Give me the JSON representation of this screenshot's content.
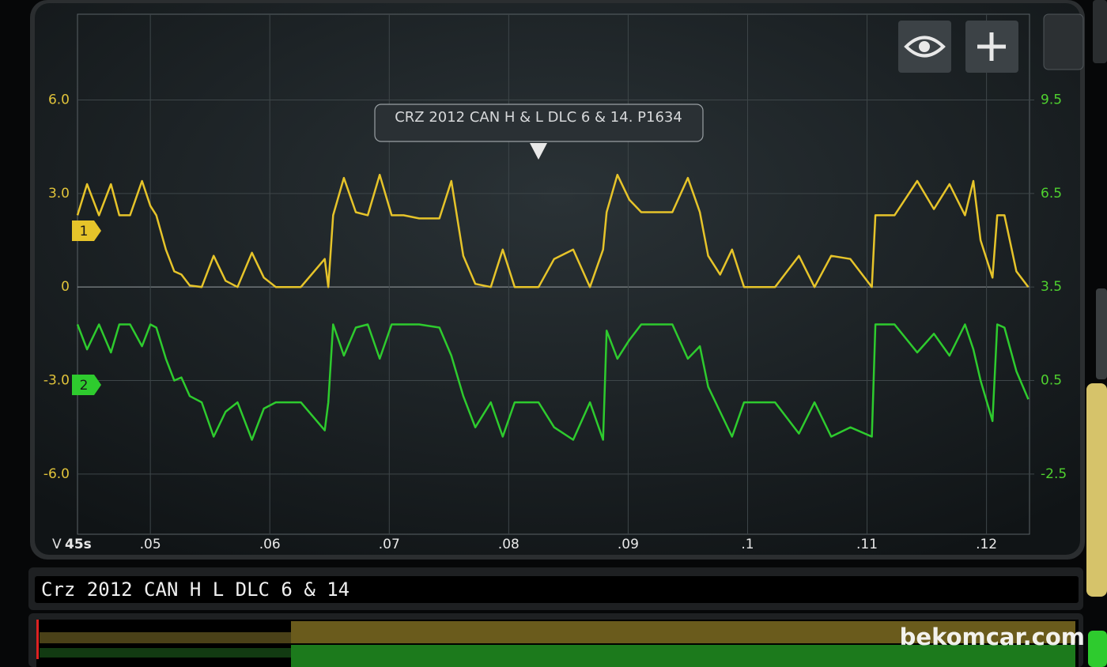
{
  "chart_data": {
    "type": "line",
    "title": "CRZ 2012 CAN H & L DLC 6 & 14. P1634",
    "trace_name": "Crz 2012 CAN H L DLC 6 & 14",
    "y_unit_label": "V",
    "x_origin_label": "45s",
    "watermark": "bekomcar.com",
    "x": [
      0.0439,
      0.0447,
      0.0457,
      0.0467,
      0.0474,
      0.0483,
      0.0493,
      0.05,
      0.0505,
      0.0513,
      0.052,
      0.0526,
      0.0533,
      0.0543,
      0.0553,
      0.0563,
      0.0573,
      0.0585,
      0.0595,
      0.0605,
      0.0626,
      0.0646,
      0.0649,
      0.0653,
      0.0662,
      0.0672,
      0.0682,
      0.0692,
      0.0702,
      0.0712,
      0.0725,
      0.0742,
      0.0752,
      0.0762,
      0.0772,
      0.0785,
      0.0795,
      0.0805,
      0.0825,
      0.0838,
      0.0854,
      0.0868,
      0.0879,
      0.0882,
      0.0891,
      0.0901,
      0.0911,
      0.0924,
      0.0937,
      0.095,
      0.096,
      0.0967,
      0.0977,
      0.0987,
      0.0997,
      0.1007,
      0.1023,
      0.1043,
      0.1056,
      0.107,
      0.1086,
      0.1104,
      0.1107,
      0.1123,
      0.1142,
      0.1156,
      0.1169,
      0.1182,
      0.1189,
      0.1195,
      0.1205,
      0.1209,
      0.1215,
      0.1225,
      0.1235
    ],
    "series": [
      {
        "name": "1",
        "color": "#e6c42a",
        "values": [
          2.3,
          3.3,
          2.3,
          3.3,
          2.3,
          2.3,
          3.4,
          2.6,
          2.3,
          1.2,
          0.5,
          0.4,
          0.05,
          0,
          1.0,
          0.2,
          0,
          1.1,
          0.3,
          0,
          0,
          0.9,
          0,
          2.3,
          3.5,
          2.4,
          2.3,
          3.6,
          2.3,
          2.3,
          2.2,
          2.2,
          3.4,
          1.0,
          0.1,
          0,
          1.2,
          0,
          0,
          0.9,
          1.2,
          0,
          1.2,
          2.4,
          3.6,
          2.8,
          2.4,
          2.4,
          2.4,
          3.5,
          2.4,
          1.0,
          0.4,
          1.2,
          0,
          0,
          0,
          1.0,
          0,
          1.0,
          0.9,
          0,
          2.3,
          2.3,
          3.4,
          2.5,
          3.3,
          2.3,
          3.4,
          1.5,
          0.3,
          2.3,
          2.3,
          0.5,
          0
        ]
      },
      {
        "name": "2",
        "color": "#2ecb2e",
        "axis": "y2",
        "values": [
          2.3,
          1.5,
          2.3,
          1.4,
          2.3,
          2.3,
          1.6,
          2.3,
          2.2,
          1.2,
          0.5,
          0.6,
          0.0,
          -0.2,
          -1.3,
          -0.5,
          -0.2,
          -1.4,
          -0.4,
          -0.2,
          -0.2,
          -1.1,
          -0.2,
          2.3,
          1.3,
          2.2,
          2.3,
          1.2,
          2.3,
          2.3,
          2.3,
          2.2,
          1.3,
          0.0,
          -1.0,
          -0.2,
          -1.3,
          -0.2,
          -0.2,
          -1.0,
          -1.4,
          -0.2,
          -1.4,
          2.1,
          1.2,
          1.8,
          2.3,
          2.3,
          2.3,
          1.2,
          1.6,
          0.3,
          -0.5,
          -1.3,
          -0.2,
          -0.2,
          -0.2,
          -1.2,
          -0.2,
          -1.3,
          -1.0,
          -1.3,
          2.3,
          2.3,
          1.4,
          2.0,
          1.3,
          2.3,
          1.5,
          0.5,
          -0.8,
          2.3,
          2.2,
          0.8,
          -0.1
        ]
      }
    ],
    "xlim": [
      0.0439,
      0.1236
    ],
    "xticks": [
      {
        "value": 0.05,
        "label": ".05"
      },
      {
        "value": 0.06,
        "label": ".06"
      },
      {
        "value": 0.07,
        "label": ".07"
      },
      {
        "value": 0.08,
        "label": ".08"
      },
      {
        "value": 0.09,
        "label": ".09"
      },
      {
        "value": 0.1,
        "label": ".1"
      },
      {
        "value": 0.11,
        "label": ".11"
      },
      {
        "value": 0.12,
        "label": ".12"
      }
    ],
    "ylim": [
      -7.93,
      8.75
    ],
    "yticks": [
      {
        "value": 6,
        "label": "6.0"
      },
      {
        "value": 3,
        "label": "3.0"
      },
      0,
      {
        "value": -3,
        "label": "-3.0"
      },
      {
        "value": -6,
        "label": "-6.0"
      }
    ],
    "y2lim": [
      -4.43,
      12.25
    ],
    "y2ticks": [
      9.5,
      6.5,
      3.5,
      0.5,
      -2.5
    ],
    "grid": true
  }
}
